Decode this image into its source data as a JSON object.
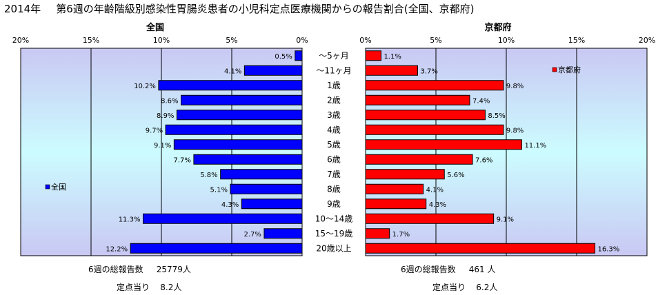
{
  "title": {
    "year": "2014年",
    "text": "第6週の年齢階級別感染性胃腸炎患者の小児科定点医療機関からの報告割合(全国、京都府)"
  },
  "colors": {
    "national": "#0000ff",
    "kyoto": "#ff0000",
    "frame": "#000000"
  },
  "chart_data": [
    {
      "type": "bar",
      "title": "全国",
      "orientation": "horizontal",
      "x_direction": "right-to-left",
      "categories": [
        "〜5ヶ月",
        "〜11ヶ月",
        "1歳",
        "2歳",
        "3歳",
        "4歳",
        "5歳",
        "6歳",
        "7歳",
        "8歳",
        "9歳",
        "10〜14歳",
        "15〜19歳",
        "20歳以上"
      ],
      "series": [
        {
          "name": "全国",
          "values": [
            0.5,
            4.1,
            10.2,
            8.6,
            8.9,
            9.7,
            9.1,
            7.7,
            5.8,
            5.1,
            4.3,
            11.3,
            2.7,
            12.2
          ]
        }
      ],
      "data_labels": [
        "0.5%",
        "4.1%",
        "10.2%",
        "8.6%",
        "8.9%",
        "9.7%",
        "9.1%",
        "7.7%",
        "5.8%",
        "5.1%",
        "4.3%",
        "11.3%",
        "2.7%",
        "12.2%"
      ],
      "xlim": [
        0,
        20
      ],
      "xticks": [
        "20%",
        "15%",
        "10%",
        "5%",
        "0%"
      ],
      "grid": true,
      "legend": "left-middle"
    },
    {
      "type": "bar",
      "title": "京都府",
      "orientation": "horizontal",
      "x_direction": "left-to-right",
      "categories": [
        "〜5ヶ月",
        "〜11ヶ月",
        "1歳",
        "2歳",
        "3歳",
        "4歳",
        "5歳",
        "6歳",
        "7歳",
        "8歳",
        "9歳",
        "10〜14歳",
        "15〜19歳",
        "20歳以上"
      ],
      "series": [
        {
          "name": "京都府",
          "values": [
            1.1,
            3.7,
            9.8,
            7.4,
            8.5,
            9.8,
            11.1,
            7.6,
            5.6,
            4.1,
            4.3,
            9.1,
            1.7,
            16.3
          ]
        }
      ],
      "data_labels": [
        "1.1%",
        "3.7%",
        "9.8%",
        "7.4%",
        "8.5%",
        "9.8%",
        "11.1%",
        "7.6%",
        "5.6%",
        "4.1%",
        "4.3%",
        "9.1%",
        "1.7%",
        "16.3%"
      ],
      "xlim": [
        0,
        20
      ],
      "xticks": [
        "0%",
        "5%",
        "10%",
        "15%",
        "20%"
      ],
      "grid": true,
      "legend": "top-right"
    }
  ],
  "footer": {
    "national": {
      "total_label": "6週の総報告数",
      "total_value": "25779人",
      "per_label": "定点当り",
      "per_value": "8.2人"
    },
    "kyoto": {
      "total_label": "6週の総報告数",
      "total_value": "461 人",
      "per_label": "定点当り",
      "per_value": "6.2人"
    }
  }
}
